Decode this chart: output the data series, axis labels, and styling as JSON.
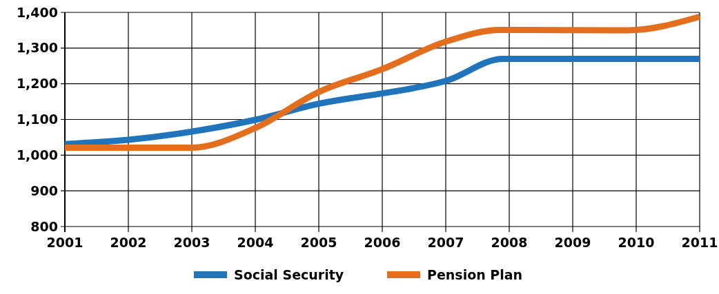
{
  "chart_data": {
    "type": "line",
    "xlim": [
      2001,
      2011
    ],
    "xticks": [
      2001,
      2002,
      2003,
      2004,
      2005,
      2006,
      2007,
      2008,
      2009,
      2010,
      2011
    ],
    "ylim": [
      800,
      1400
    ],
    "yticks": [
      {
        "value": 800,
        "label": "800"
      },
      {
        "value": 900,
        "label": "900"
      },
      {
        "value": 1000,
        "label": "1,000"
      },
      {
        "value": 1100,
        "label": "1,100"
      },
      {
        "value": 1200,
        "label": "1,200"
      },
      {
        "value": 1300,
        "label": "1,300"
      },
      {
        "value": 1400,
        "label": "1,400"
      }
    ],
    "grid": true,
    "legend": "bottom",
    "series": [
      {
        "name": "Social Security",
        "color": "#1f74bb",
        "x": [
          2001,
          2002,
          2003,
          2004,
          2005,
          2006,
          2006.5,
          2007,
          2007.9,
          2011
        ],
        "values": [
          1031,
          1043,
          1066,
          1099,
          1144,
          1173,
          1188,
          1208,
          1270,
          1270
        ]
      },
      {
        "name": "Pension Plan",
        "color": "#e36f1e",
        "x": [
          2001,
          2002,
          2003,
          2004,
          2005,
          2006,
          2007,
          2007.85,
          2009.87,
          2011
        ],
        "values": [
          1021,
          1021,
          1021,
          1076,
          1177,
          1241,
          1318,
          1351,
          1350,
          1388
        ]
      }
    ]
  }
}
